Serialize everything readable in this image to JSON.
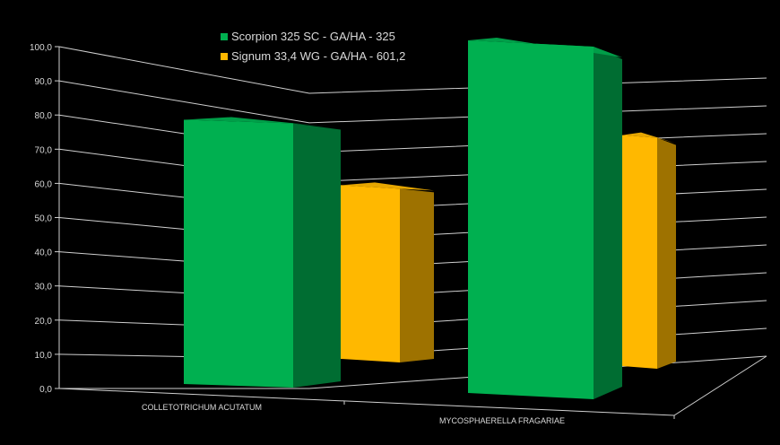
{
  "chart_data": {
    "type": "bar",
    "title": "",
    "xlabel": "",
    "ylabel": "",
    "ylim": [
      0,
      100
    ],
    "yticks": [
      "0,0",
      "10,0",
      "20,0",
      "30,0",
      "40,0",
      "50,0",
      "60,0",
      "70,0",
      "80,0",
      "90,0",
      "100,0"
    ],
    "categories": [
      "COLLETOTRICHUM ACUTATUM",
      "MYCOSPHAERELLA FRAGARIAE"
    ],
    "series": [
      {
        "name": "Scorpion 325 SC - GA/HA - 325",
        "values": [
          76.5,
          99.5
        ],
        "color": "#00b050"
      },
      {
        "name": "Signum 33,4 WG - GA/HA - 601,2",
        "values": [
          60.5,
          78.0
        ],
        "color": "#ffb800"
      }
    ],
    "legend_position": "top-left",
    "grid": true,
    "style": "3d"
  }
}
